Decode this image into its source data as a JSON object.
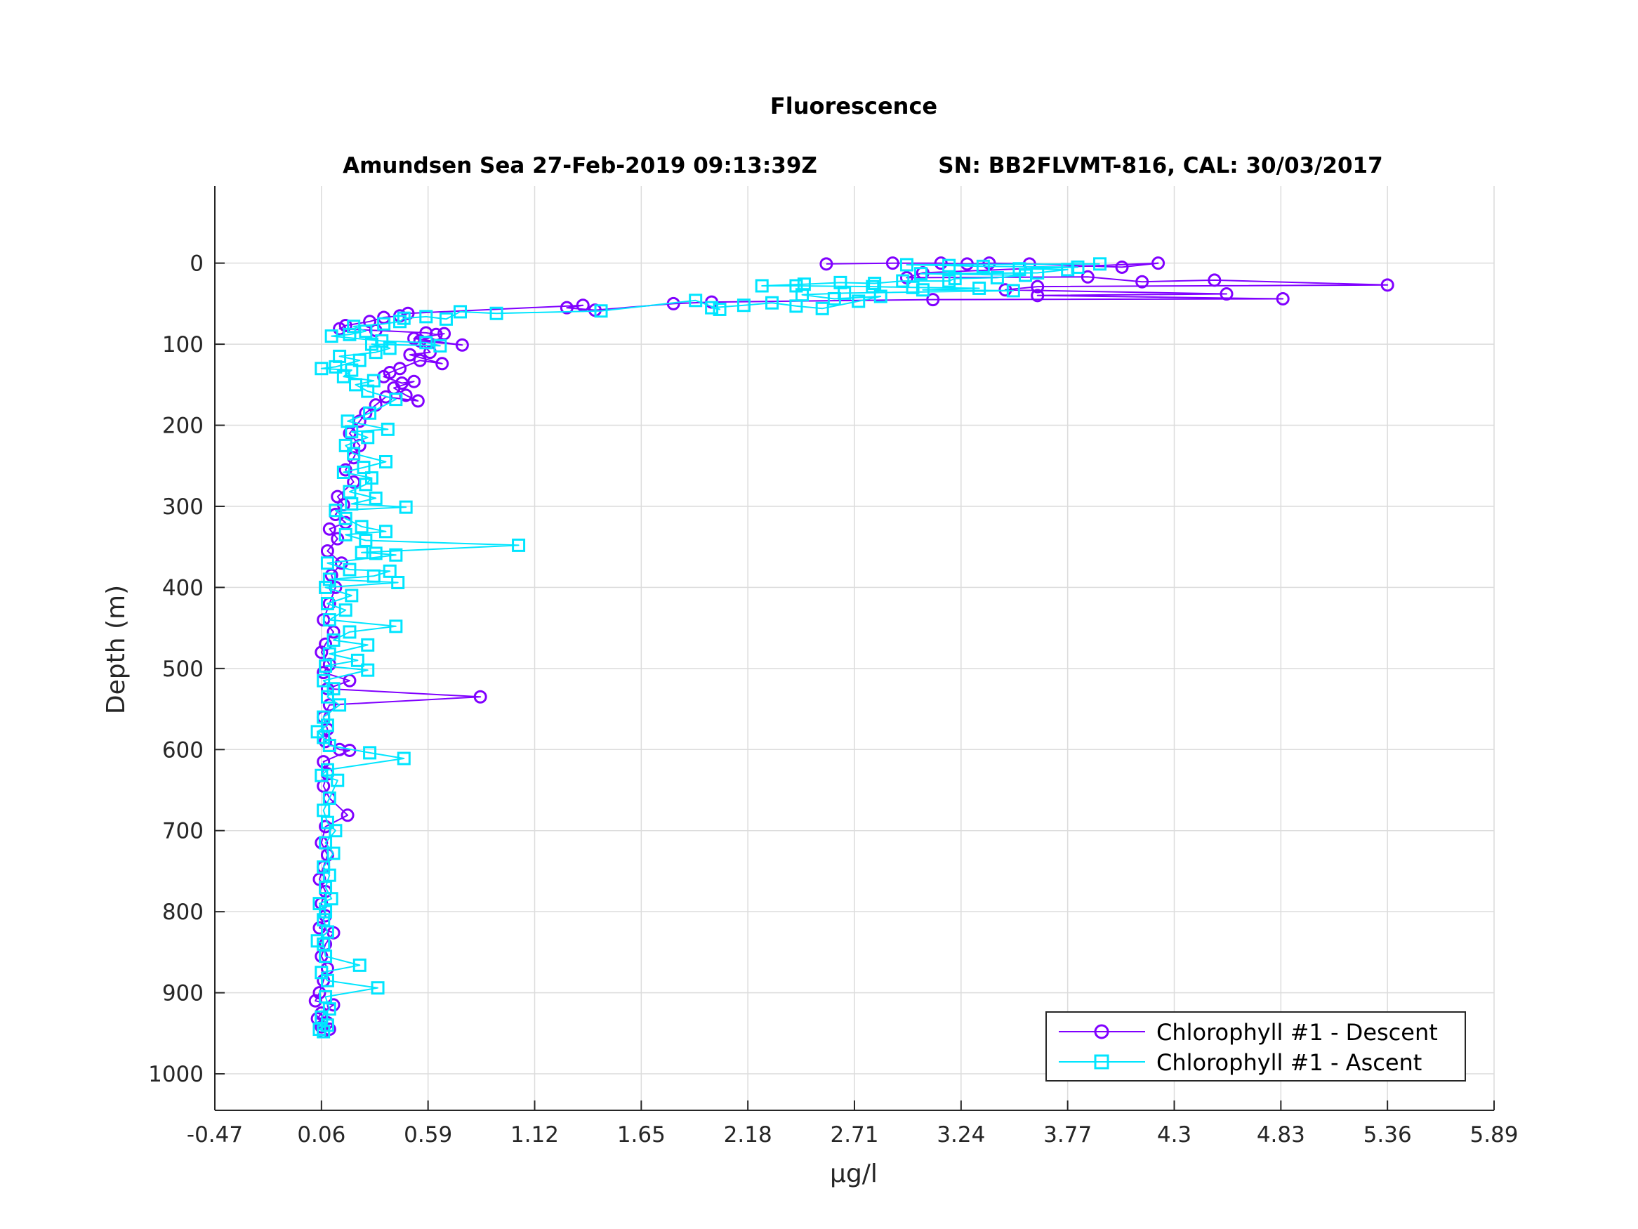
{
  "chart_data": {
    "type": "line",
    "title": "Fluorescence",
    "subtitle_left": "Amundsen Sea 27-Feb-2019 09:13:39Z",
    "subtitle_right": "SN: BB2FLVMT-816, CAL: 30/03/2017",
    "xlabel": "μg/l",
    "ylabel": "Depth (m)",
    "xlim": [
      -0.47,
      5.89
    ],
    "ylim": [
      1045,
      -95
    ],
    "y_reversed": true,
    "grid": true,
    "legend_position": "bottom-right",
    "x_ticks": [
      "-0.47",
      "0.06",
      "0.59",
      "1.12",
      "1.65",
      "2.18",
      "2.71",
      "3.24",
      "3.77",
      "4.3",
      "4.83",
      "5.36",
      "5.89"
    ],
    "y_ticks": [
      "0",
      "100",
      "200",
      "300",
      "400",
      "500",
      "600",
      "700",
      "800",
      "900",
      "1000"
    ],
    "series": [
      {
        "name": "Chlorophyll #1 - Descent",
        "color": "#8000ff",
        "marker": "circle",
        "points": [
          [
            2.57,
            1
          ],
          [
            2.9,
            0
          ],
          [
            3.14,
            0
          ],
          [
            3.27,
            1
          ],
          [
            3.38,
            0
          ],
          [
            3.58,
            1
          ],
          [
            4.04,
            5
          ],
          [
            4.22,
            0
          ],
          [
            3.05,
            12
          ],
          [
            2.97,
            18
          ],
          [
            3.87,
            17
          ],
          [
            4.14,
            23
          ],
          [
            4.5,
            21
          ],
          [
            5.36,
            27
          ],
          [
            3.62,
            29
          ],
          [
            3.46,
            33
          ],
          [
            4.56,
            38
          ],
          [
            3.62,
            40
          ],
          [
            4.84,
            44
          ],
          [
            3.1,
            45
          ],
          [
            2.0,
            48
          ],
          [
            1.81,
            50
          ],
          [
            1.42,
            58
          ],
          [
            1.28,
            55
          ],
          [
            1.36,
            52
          ],
          [
            0.49,
            62
          ],
          [
            0.45,
            65
          ],
          [
            0.37,
            67
          ],
          [
            0.3,
            72
          ],
          [
            0.18,
            77
          ],
          [
            0.15,
            81
          ],
          [
            0.33,
            83
          ],
          [
            0.58,
            86
          ],
          [
            0.63,
            88
          ],
          [
            0.67,
            87
          ],
          [
            0.52,
            93
          ],
          [
            0.76,
            101
          ],
          [
            0.55,
            96
          ],
          [
            0.6,
            110
          ],
          [
            0.5,
            113
          ],
          [
            0.66,
            124
          ],
          [
            0.55,
            120
          ],
          [
            0.45,
            130
          ],
          [
            0.4,
            135
          ],
          [
            0.37,
            140
          ],
          [
            0.46,
            148
          ],
          [
            0.52,
            146
          ],
          [
            0.42,
            154
          ],
          [
            0.48,
            163
          ],
          [
            0.54,
            170
          ],
          [
            0.38,
            165
          ],
          [
            0.33,
            175
          ],
          [
            0.28,
            185
          ],
          [
            0.25,
            195
          ],
          [
            0.2,
            210
          ],
          [
            0.25,
            225
          ],
          [
            0.22,
            240
          ],
          [
            0.18,
            255
          ],
          [
            0.22,
            270
          ],
          [
            0.14,
            288
          ],
          [
            0.17,
            298
          ],
          [
            0.13,
            310
          ],
          [
            0.18,
            320
          ],
          [
            0.1,
            328
          ],
          [
            0.14,
            340
          ],
          [
            0.09,
            355
          ],
          [
            0.16,
            370
          ],
          [
            0.11,
            385
          ],
          [
            0.13,
            400
          ],
          [
            0.1,
            420
          ],
          [
            0.07,
            440
          ],
          [
            0.12,
            455
          ],
          [
            0.08,
            470
          ],
          [
            0.06,
            480
          ],
          [
            0.1,
            495
          ],
          [
            0.07,
            505
          ],
          [
            0.2,
            515
          ],
          [
            0.09,
            525
          ],
          [
            0.85,
            535
          ],
          [
            0.1,
            545
          ],
          [
            0.07,
            560
          ],
          [
            0.09,
            575
          ],
          [
            0.08,
            590
          ],
          [
            0.15,
            600
          ],
          [
            0.2,
            601
          ],
          [
            0.07,
            615
          ],
          [
            0.09,
            630
          ],
          [
            0.07,
            645
          ],
          [
            0.1,
            660
          ],
          [
            0.19,
            681
          ],
          [
            0.08,
            695
          ],
          [
            0.06,
            715
          ],
          [
            0.09,
            730
          ],
          [
            0.07,
            745
          ],
          [
            0.05,
            760
          ],
          [
            0.08,
            775
          ],
          [
            0.06,
            790
          ],
          [
            0.08,
            805
          ],
          [
            0.05,
            820
          ],
          [
            0.12,
            826
          ],
          [
            0.08,
            840
          ],
          [
            0.06,
            855
          ],
          [
            0.09,
            870
          ],
          [
            0.07,
            885
          ],
          [
            0.05,
            900
          ],
          [
            0.03,
            910
          ],
          [
            0.12,
            915
          ],
          [
            0.06,
            925
          ],
          [
            0.04,
            932
          ],
          [
            0.09,
            937
          ],
          [
            0.06,
            942
          ],
          [
            0.1,
            945
          ],
          [
            0.07,
            948
          ]
        ]
      },
      {
        "name": "Chlorophyll #1 - Ascent",
        "color": "#00e5ff",
        "marker": "square",
        "points": [
          [
            0.07,
            948
          ],
          [
            0.05,
            945
          ],
          [
            0.09,
            940
          ],
          [
            0.06,
            930
          ],
          [
            0.1,
            920
          ],
          [
            0.08,
            905
          ],
          [
            0.34,
            894
          ],
          [
            0.09,
            885
          ],
          [
            0.06,
            875
          ],
          [
            0.25,
            866
          ],
          [
            0.08,
            855
          ],
          [
            0.07,
            840
          ],
          [
            0.04,
            836
          ],
          [
            0.09,
            825
          ],
          [
            0.07,
            810
          ],
          [
            0.08,
            800
          ],
          [
            0.05,
            790
          ],
          [
            0.11,
            784
          ],
          [
            0.08,
            770
          ],
          [
            0.1,
            755
          ],
          [
            0.07,
            745
          ],
          [
            0.12,
            728
          ],
          [
            0.08,
            715
          ],
          [
            0.13,
            700
          ],
          [
            0.09,
            690
          ],
          [
            0.07,
            675
          ],
          [
            0.1,
            660
          ],
          [
            0.14,
            638
          ],
          [
            0.06,
            632
          ],
          [
            0.09,
            625
          ],
          [
            0.47,
            611
          ],
          [
            0.3,
            604
          ],
          [
            0.1,
            595
          ],
          [
            0.07,
            585
          ],
          [
            0.04,
            578
          ],
          [
            0.09,
            570
          ],
          [
            0.07,
            560
          ],
          [
            0.15,
            545
          ],
          [
            0.09,
            535
          ],
          [
            0.12,
            525
          ],
          [
            0.07,
            515
          ],
          [
            0.29,
            502
          ],
          [
            0.08,
            497
          ],
          [
            0.24,
            490
          ],
          [
            0.1,
            482
          ],
          [
            0.29,
            471
          ],
          [
            0.12,
            465
          ],
          [
            0.2,
            455
          ],
          [
            0.43,
            448
          ],
          [
            0.1,
            440
          ],
          [
            0.18,
            428
          ],
          [
            0.09,
            420
          ],
          [
            0.21,
            410
          ],
          [
            0.08,
            400
          ],
          [
            0.44,
            394
          ],
          [
            0.1,
            390
          ],
          [
            0.32,
            386
          ],
          [
            0.4,
            380
          ],
          [
            0.2,
            378
          ],
          [
            0.09,
            370
          ],
          [
            0.43,
            360
          ],
          [
            0.33,
            358
          ],
          [
            0.26,
            357
          ],
          [
            1.04,
            348
          ],
          [
            0.28,
            342
          ],
          [
            0.18,
            335
          ],
          [
            0.38,
            331
          ],
          [
            0.26,
            325
          ],
          [
            0.18,
            315
          ],
          [
            0.13,
            305
          ],
          [
            0.48,
            301
          ],
          [
            0.21,
            297
          ],
          [
            0.33,
            290
          ],
          [
            0.2,
            282
          ],
          [
            0.28,
            273
          ],
          [
            0.31,
            265
          ],
          [
            0.17,
            258
          ],
          [
            0.27,
            252
          ],
          [
            0.38,
            245
          ],
          [
            0.22,
            235
          ],
          [
            0.18,
            225
          ],
          [
            0.29,
            215
          ],
          [
            0.21,
            208
          ],
          [
            0.39,
            205
          ],
          [
            0.19,
            195
          ],
          [
            0.3,
            185
          ],
          [
            0.43,
            168
          ],
          [
            0.29,
            158
          ],
          [
            0.23,
            150
          ],
          [
            0.32,
            145
          ],
          [
            0.17,
            140
          ],
          [
            0.21,
            132
          ],
          [
            0.06,
            130
          ],
          [
            0.13,
            128
          ],
          [
            0.25,
            120
          ],
          [
            0.15,
            115
          ],
          [
            0.33,
            110
          ],
          [
            0.4,
            105
          ],
          [
            0.31,
            100
          ],
          [
            0.65,
            102
          ],
          [
            0.58,
            98
          ],
          [
            0.36,
            96
          ],
          [
            0.11,
            90
          ],
          [
            0.2,
            88
          ],
          [
            0.28,
            84
          ],
          [
            0.22,
            78
          ],
          [
            0.37,
            75
          ],
          [
            0.45,
            72
          ],
          [
            0.47,
            68
          ],
          [
            0.58,
            66
          ],
          [
            0.68,
            69
          ],
          [
            0.75,
            60
          ],
          [
            0.93,
            62
          ],
          [
            1.45,
            59
          ],
          [
            1.92,
            46
          ],
          [
            2.04,
            57
          ],
          [
            2.0,
            55
          ],
          [
            2.16,
            52
          ],
          [
            2.3,
            49
          ],
          [
            2.42,
            53
          ],
          [
            2.55,
            56
          ],
          [
            2.73,
            47
          ],
          [
            2.84,
            41
          ],
          [
            2.61,
            44
          ],
          [
            2.45,
            39
          ],
          [
            2.66,
            37
          ],
          [
            3.5,
            34
          ],
          [
            3.05,
            33
          ],
          [
            3.33,
            31
          ],
          [
            3.0,
            30
          ],
          [
            2.8,
            29
          ],
          [
            2.42,
            28
          ],
          [
            2.25,
            28
          ],
          [
            2.46,
            26
          ],
          [
            2.64,
            24
          ],
          [
            2.81,
            25
          ],
          [
            2.95,
            22
          ],
          [
            3.18,
            22
          ],
          [
            3.21,
            19
          ],
          [
            3.42,
            18
          ],
          [
            3.56,
            15
          ],
          [
            3.04,
            13
          ],
          [
            3.62,
            12
          ],
          [
            3.77,
            8
          ],
          [
            3.53,
            7
          ],
          [
            3.82,
            5
          ],
          [
            3.35,
            4
          ],
          [
            3.18,
            3
          ],
          [
            2.97,
            2
          ],
          [
            3.93,
            1
          ]
        ]
      }
    ]
  }
}
